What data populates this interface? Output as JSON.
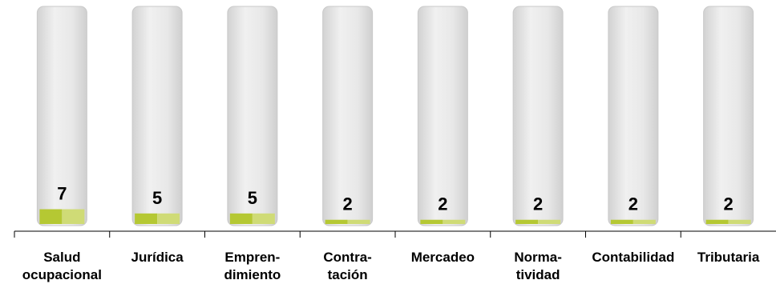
{
  "chart_data": {
    "type": "bar",
    "categories": [
      "Salud\nocupacional",
      "Jurídica",
      "Empren-\ndimiento",
      "Contra-\ntación",
      "Mercadeo",
      "Norma-\ntividad",
      "Contabilidad",
      "Tributaria"
    ],
    "values": [
      7,
      5,
      5,
      2,
      2,
      2,
      2,
      2
    ],
    "data_labels": [
      "7",
      "5",
      "5",
      "2",
      "2",
      "2",
      "2",
      "2"
    ],
    "title": "",
    "xlabel": "",
    "ylabel": "",
    "ylim": [
      0,
      100
    ],
    "grid": false,
    "legend": "none",
    "colors": {
      "fill": "#b5c833",
      "fill_light": "#cfdb76",
      "cylinder": "#e6e6e6",
      "cylinder_edge": "#c9c9c9",
      "axis": "#000000"
    }
  }
}
